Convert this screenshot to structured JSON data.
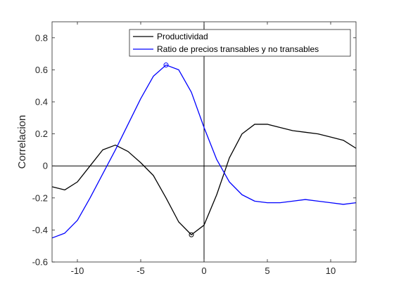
{
  "chart_data": {
    "type": "line",
    "title": "",
    "xlabel": "",
    "ylabel": "Correlacion",
    "xlim": [
      -12,
      12
    ],
    "ylim": [
      -0.6,
      0.9
    ],
    "x_ticks": [
      -10,
      -5,
      0,
      5,
      10
    ],
    "x_tick_labels": [
      "-10",
      "-5",
      "0",
      "5",
      "10"
    ],
    "y_ticks": [
      -0.6,
      -0.4,
      -0.2,
      0,
      0.2,
      0.4,
      0.6,
      0.8
    ],
    "y_tick_labels": [
      "-0.6",
      "-0.4",
      "-0.2",
      "0",
      "0.2",
      "0.4",
      "0.6",
      "0.8"
    ],
    "grid": false,
    "legend_position": "top-right",
    "reference_lines": {
      "horizontal_y": 0,
      "vertical_x": 0
    },
    "x": [
      -12,
      -11,
      -10,
      -9,
      -8,
      -7,
      -6,
      -5,
      -4,
      -3,
      -2,
      -1,
      0,
      1,
      2,
      3,
      4,
      5,
      6,
      7,
      8,
      9,
      10,
      11,
      12
    ],
    "series": [
      {
        "name": "Productividad",
        "color": "#000000",
        "values": [
          -0.13,
          -0.15,
          -0.1,
          0.0,
          0.1,
          0.13,
          0.09,
          0.02,
          -0.06,
          -0.2,
          -0.35,
          -0.43,
          -0.37,
          -0.18,
          0.05,
          0.2,
          0.26,
          0.26,
          0.24,
          0.22,
          0.21,
          0.2,
          0.18,
          0.16,
          0.11
        ],
        "marker": {
          "x": -1,
          "y": -0.43
        }
      },
      {
        "name": "Ratio de precios transables y no transables",
        "color": "#0000ff",
        "values": [
          -0.45,
          -0.42,
          -0.34,
          -0.2,
          -0.05,
          0.1,
          0.26,
          0.42,
          0.56,
          0.63,
          0.6,
          0.46,
          0.24,
          0.04,
          -0.1,
          -0.18,
          -0.22,
          -0.23,
          -0.23,
          -0.22,
          -0.21,
          -0.22,
          -0.23,
          -0.24,
          -0.23
        ],
        "marker": {
          "x": -3,
          "y": 0.63
        }
      }
    ]
  }
}
